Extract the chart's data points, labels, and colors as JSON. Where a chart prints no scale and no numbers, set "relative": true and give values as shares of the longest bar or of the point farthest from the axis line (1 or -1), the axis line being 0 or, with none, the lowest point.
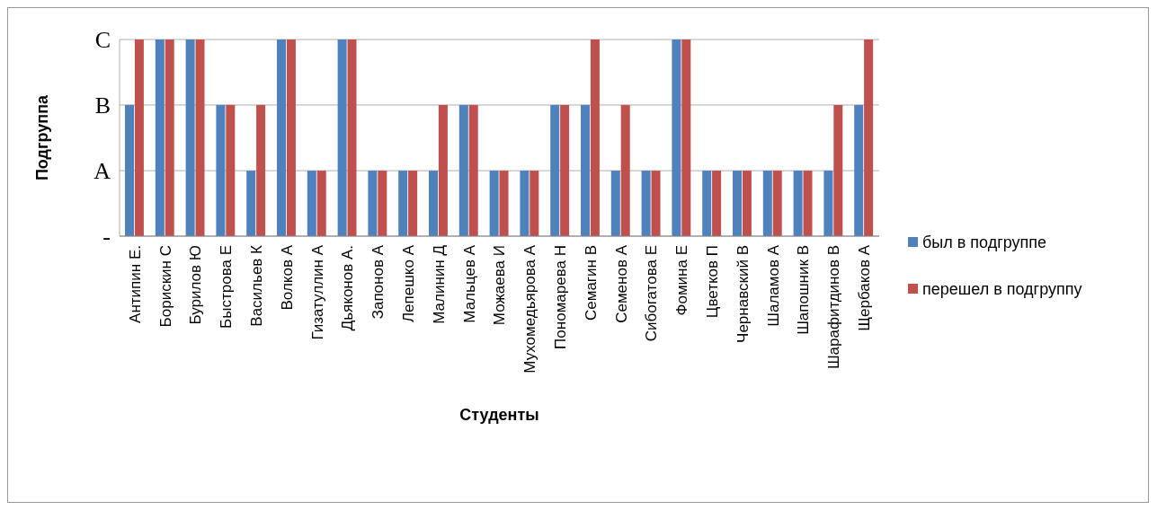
{
  "chart_data": {
    "type": "bar",
    "xlabel": "Студенты",
    "ylabel": "Подгруппа",
    "relative": true,
    "categories": [
      "Антипин Е.",
      "Борискин С",
      "Бурилов Ю",
      "Быстрова Е",
      "Васильев К",
      "Волков А",
      "Гизатуллин А",
      "Дьяконов А.",
      "Запонов А",
      "Лепешко А",
      "Малинин Д",
      "Мальцев А",
      "Можаева И",
      "Мухомедьярова А",
      "Пономарева Н",
      "Семагин В",
      "Семенов А",
      "Сибогатова Е",
      "Фомина Е",
      "Цветков П",
      "Чернавский В",
      "Шаламов А",
      "Шапошник В",
      "Шарафитдинов В",
      "Щербаков А"
    ],
    "series": [
      {
        "name": "был в подгруппе",
        "color": "#4f81bd",
        "values": [
          0.667,
          1,
          1,
          0.667,
          0.333,
          1,
          0.333,
          1,
          0.333,
          0.333,
          0.333,
          0.667,
          0.333,
          0.333,
          0.667,
          0.667,
          0.333,
          0.333,
          1,
          0.333,
          0.333,
          0.333,
          0.333,
          0.333,
          0.667
        ]
      },
      {
        "name": "перешел в подгруппу",
        "color": "#c0504d",
        "values": [
          1,
          1,
          1,
          0.667,
          0.667,
          1,
          0.333,
          1,
          0.333,
          0.333,
          0.667,
          0.667,
          0.333,
          0.333,
          0.667,
          1,
          0.667,
          0.333,
          1,
          0.333,
          0.333,
          0.333,
          0.333,
          0.667,
          1
        ]
      }
    ],
    "ref_lines": [
      {
        "axis": "y",
        "value": 0,
        "label": "-"
      },
      {
        "axis": "y",
        "value": 0.333,
        "label": "A"
      },
      {
        "axis": "y",
        "value": 0.667,
        "label": "B"
      },
      {
        "axis": "y",
        "value": 1,
        "label": "C"
      }
    ],
    "legend": "right"
  }
}
